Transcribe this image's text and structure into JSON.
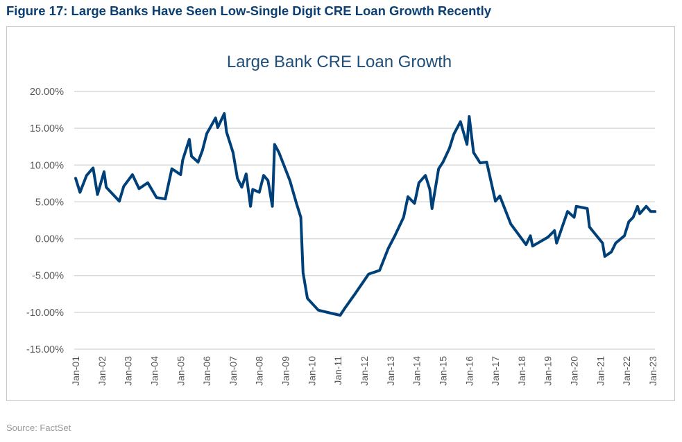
{
  "figure_title": "Figure 17: Large Banks Have Seen Low-Single Digit CRE Loan Growth Recently",
  "source": "Source: FactSet",
  "chart_data": {
    "type": "line",
    "title": "Large Bank CRE Loan Growth",
    "xlabel": "",
    "ylabel": "",
    "ylim": [
      -15,
      20
    ],
    "yticks": [
      "20.00%",
      "15.00%",
      "10.00%",
      "5.00%",
      "0.00%",
      "-5.00%",
      "-10.00%",
      "-15.00%"
    ],
    "ytick_values": [
      20,
      15,
      10,
      5,
      0,
      -5,
      -10,
      -15
    ],
    "xticks": [
      "Jan-01",
      "Jan-02",
      "Jan-03",
      "Jan-04",
      "Jan-05",
      "Jan-06",
      "Jan-07",
      "Jan-08",
      "Jan-09",
      "Jan-10",
      "Jan-11",
      "Jan-12",
      "Jan-13",
      "Jan-14",
      "Jan-15",
      "Jan-16",
      "Jan-17",
      "Jan-18",
      "Jan-19",
      "Jan-20",
      "Jan-21",
      "Jan-22",
      "Jan-23"
    ],
    "grid": "horizontal",
    "line_color": "#004078",
    "series": [
      {
        "x": [
          "2001-01",
          "2001-03",
          "2001-06",
          "2001-09",
          "2001-11",
          "2002-02",
          "2002-03",
          "2002-09",
          "2002-11",
          "2003-03",
          "2003-06",
          "2003-10",
          "2004-02",
          "2004-06",
          "2004-09",
          "2005-01",
          "2005-02",
          "2005-05",
          "2005-06",
          "2005-09",
          "2005-11",
          "2006-01",
          "2006-02",
          "2006-05",
          "2006-06",
          "2006-09",
          "2006-10",
          "2007-01",
          "2007-03",
          "2007-05",
          "2007-07",
          "2007-09",
          "2007-10",
          "2008-01",
          "2008-03",
          "2008-05",
          "2008-07",
          "2008-08",
          "2008-10",
          "2009-03",
          "2009-06",
          "2009-08",
          "2009-09",
          "2009-11",
          "2010-04",
          "2010-11",
          "2011-02",
          "2011-04",
          "2011-09",
          "2012-03",
          "2012-08",
          "2012-12",
          "2013-03",
          "2013-07",
          "2013-09",
          "2013-12",
          "2014-02",
          "2014-05",
          "2014-07",
          "2014-08",
          "2014-11",
          "2015-01",
          "2015-04",
          "2015-06",
          "2015-09",
          "2015-12",
          "2016-01",
          "2016-03",
          "2016-06",
          "2016-09",
          "2017-01",
          "2017-03",
          "2017-08",
          "2018-03",
          "2018-05",
          "2018-06",
          "2019-01",
          "2019-04",
          "2019-05",
          "2019-10",
          "2020-01",
          "2020-02",
          "2020-07",
          "2020-08",
          "2021-02",
          "2021-03",
          "2021-06",
          "2021-08",
          "2021-12",
          "2022-02",
          "2022-04",
          "2022-06",
          "2022-07",
          "2022-10",
          "2022-12",
          "2023-02"
        ],
        "y": [
          8.2,
          6.3,
          8.6,
          9.6,
          6.0,
          9.1,
          7.0,
          5.1,
          7.1,
          8.7,
          6.8,
          7.6,
          5.6,
          5.4,
          9.5,
          8.7,
          10.7,
          13.5,
          11.2,
          10.4,
          12.0,
          14.3,
          14.8,
          16.4,
          15.1,
          17.0,
          14.5,
          11.7,
          8.2,
          7.0,
          8.8,
          4.4,
          6.7,
          6.3,
          8.6,
          7.9,
          4.4,
          12.8,
          11.7,
          7.9,
          4.8,
          2.9,
          -4.6,
          -8.1,
          -9.7,
          -10.2,
          -10.4,
          -9.5,
          -7.4,
          -4.8,
          -4.3,
          -1.3,
          0.4,
          2.9,
          5.7,
          4.8,
          7.6,
          8.6,
          6.7,
          4.1,
          9.5,
          10.4,
          12.3,
          14.2,
          15.9,
          12.8,
          16.6,
          11.7,
          10.3,
          10.4,
          5.1,
          5.8,
          2.0,
          -0.8,
          0.4,
          -1.0,
          0.2,
          1.1,
          -0.6,
          3.7,
          2.9,
          4.4,
          4.1,
          1.6,
          -0.6,
          -2.4,
          -1.8,
          -0.6,
          0.4,
          2.3,
          2.9,
          4.4,
          3.4,
          4.4,
          3.7,
          3.7
        ]
      }
    ]
  }
}
